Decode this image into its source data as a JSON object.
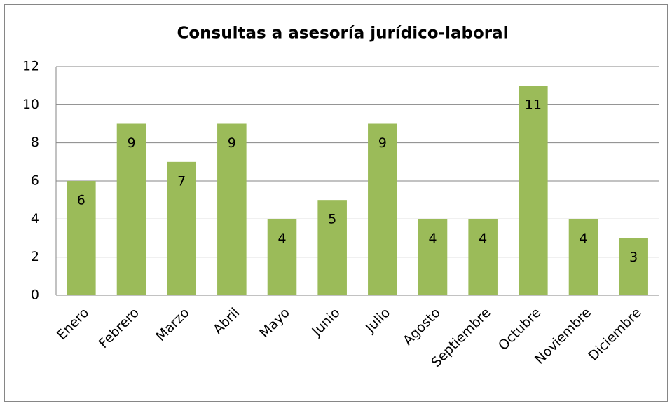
{
  "chart_data": {
    "type": "bar",
    "title": "Consultas a asesoría jurídico-laboral",
    "categories": [
      "Enero",
      "Febrero",
      "Marzo",
      "Abril",
      "Mayo",
      "Junio",
      "Julio",
      "Agosto",
      "Septiembre",
      "Octubre",
      "Noviembre",
      "Diciembre"
    ],
    "values": [
      6,
      9,
      7,
      9,
      4,
      5,
      9,
      4,
      4,
      11,
      4,
      3
    ],
    "color": "#9bbb59",
    "ylim": [
      0,
      12
    ],
    "yticks": [
      0,
      2,
      4,
      6,
      8,
      10,
      12
    ],
    "grid": true
  }
}
